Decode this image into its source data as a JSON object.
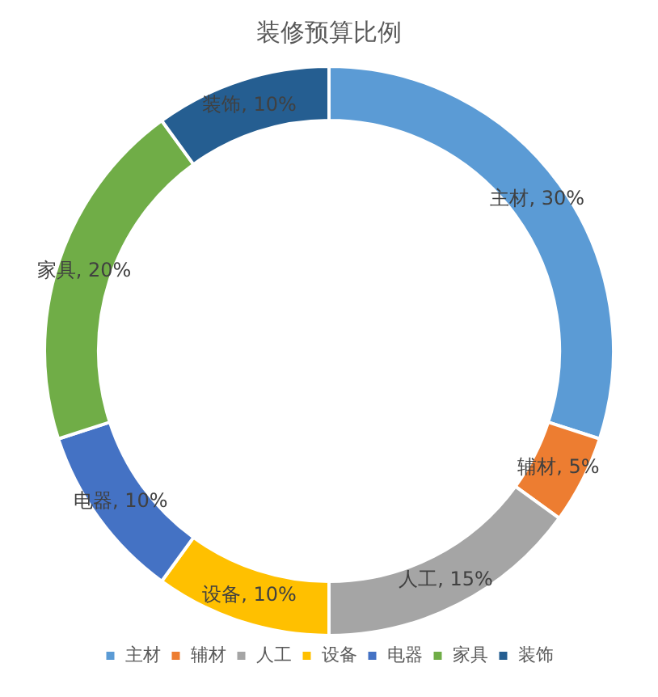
{
  "chart_data": {
    "type": "donut",
    "title": "装修预算比例",
    "categories": [
      "主材",
      "辅材",
      "人工",
      "设备",
      "电器",
      "家具",
      "装饰"
    ],
    "values": [
      30,
      5,
      15,
      10,
      10,
      20,
      10
    ],
    "value_labels": [
      "主材, 30%",
      "辅材, 5%",
      "人工, 15%",
      "设备, 10%",
      "电器, 10%",
      "家具, 20%",
      "装饰, 10%"
    ],
    "colors": [
      "#5b9bd5",
      "#ed7d31",
      "#a5a5a5",
      "#ffc000",
      "#4472c4",
      "#70ad47",
      "#255e91"
    ],
    "legend": "bottom"
  }
}
